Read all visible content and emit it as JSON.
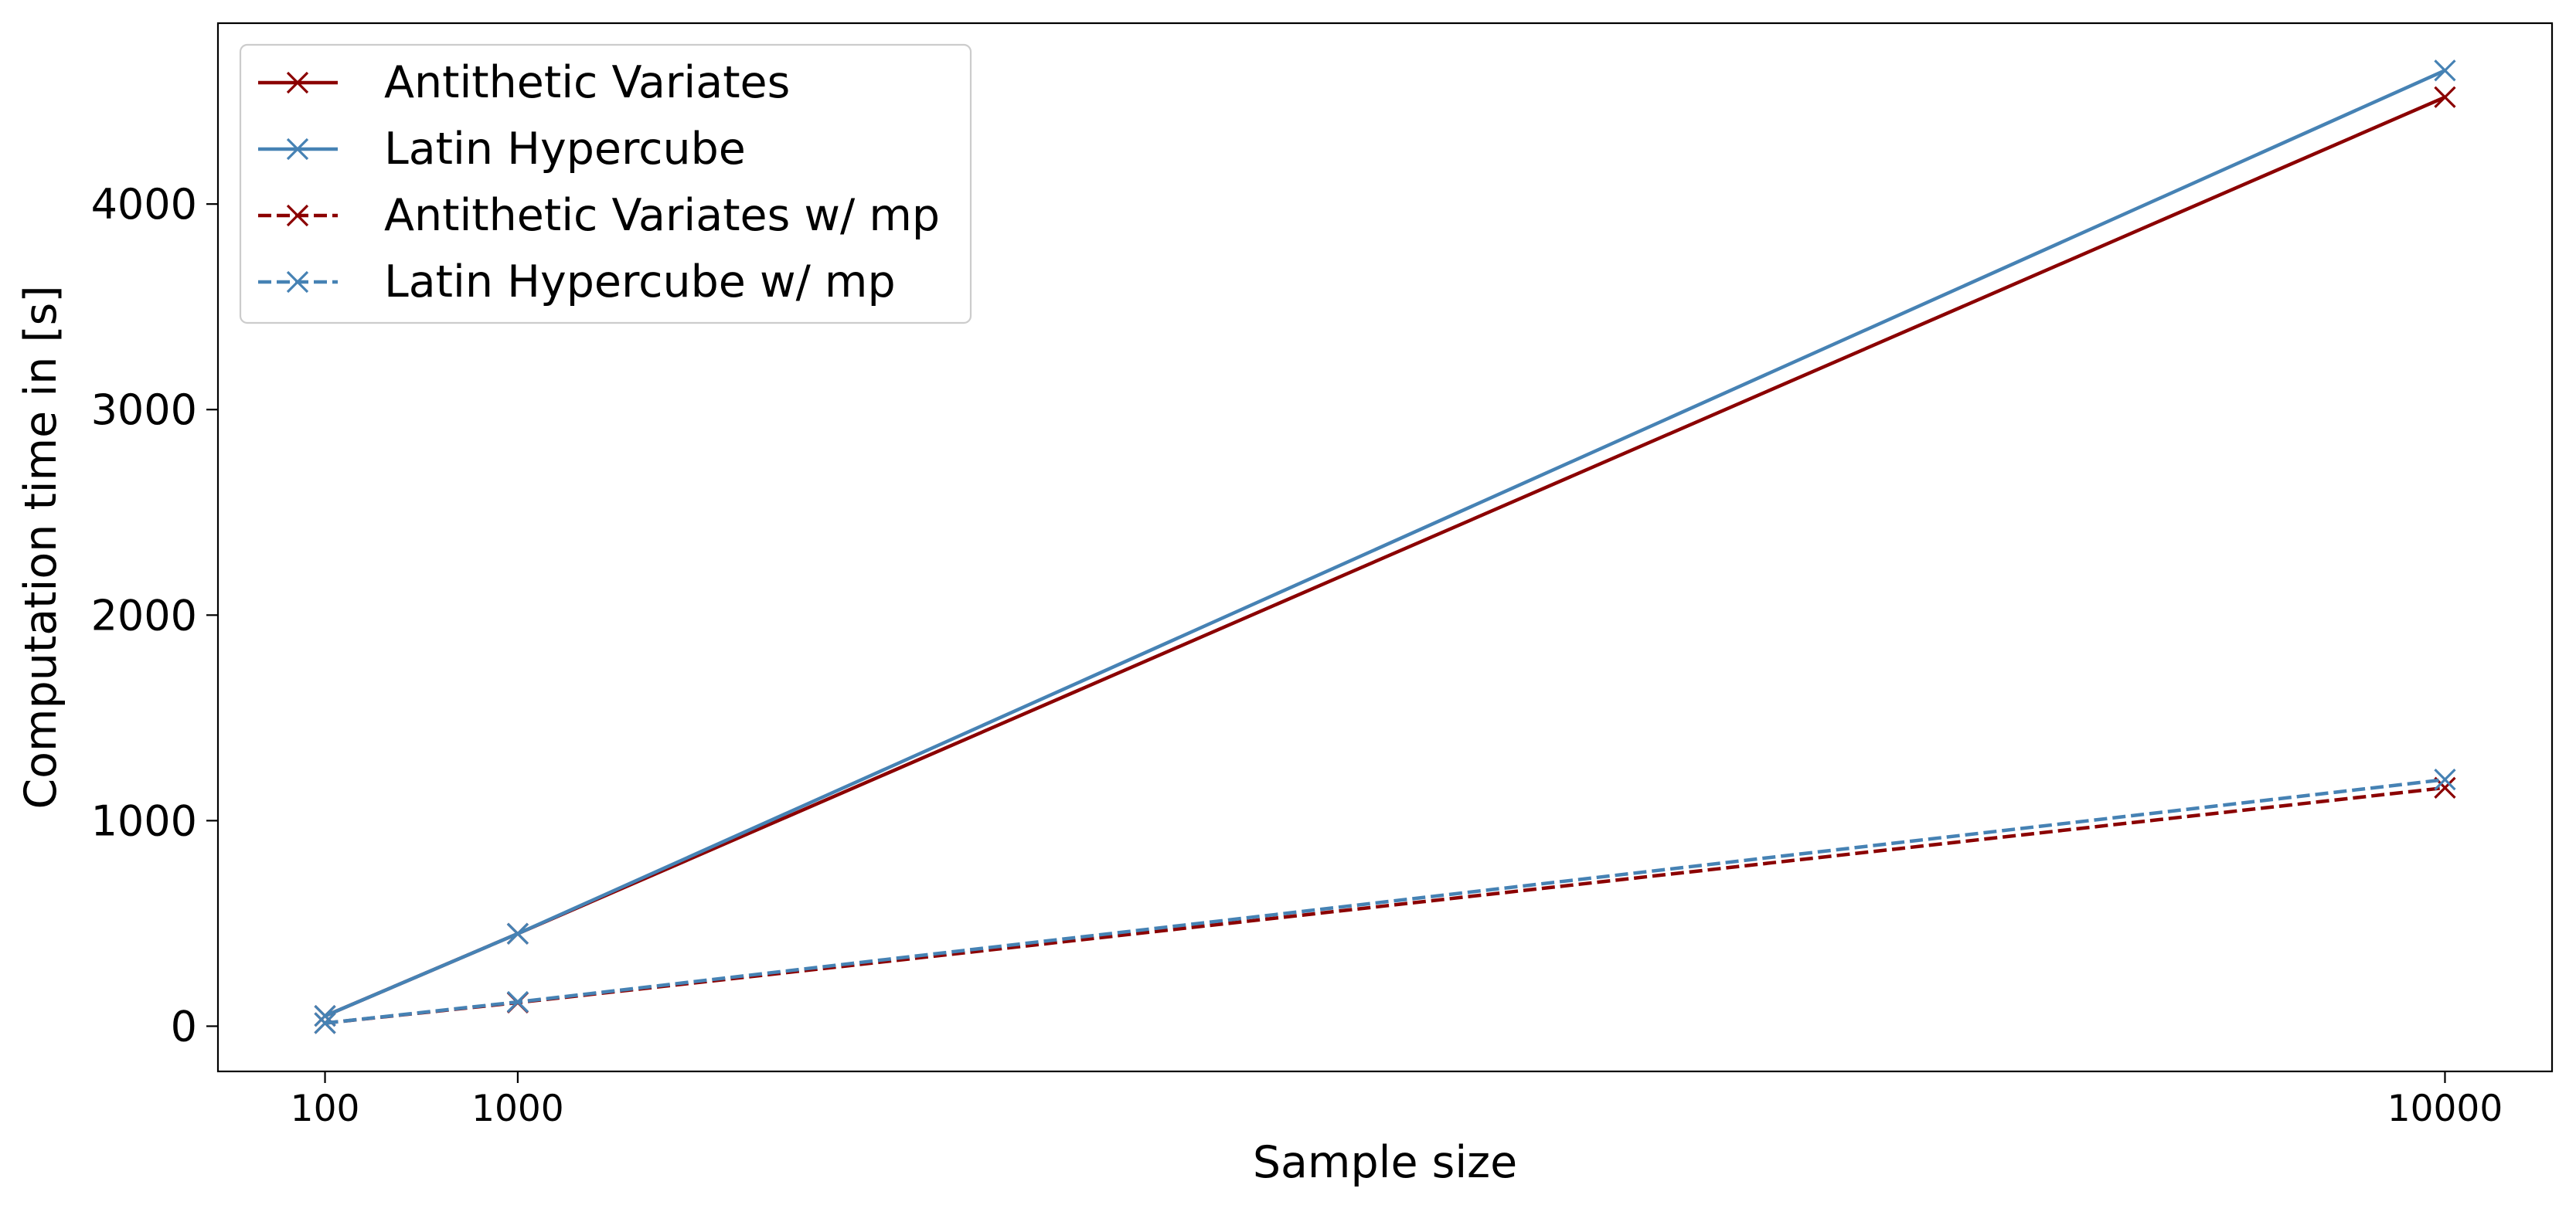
{
  "chart_data": {
    "type": "line",
    "title": "",
    "xlabel": "Sample size",
    "ylabel": "Computation time in [s]",
    "x": [
      100,
      1000,
      10000
    ],
    "xticks": [
      100,
      1000,
      10000
    ],
    "xtick_labels": [
      "100",
      "1000",
      "10000"
    ],
    "xlim": [
      -400,
      10500
    ],
    "yticks": [
      0,
      1000,
      2000,
      3000,
      4000
    ],
    "ytick_labels": [
      "0",
      "1000",
      "2000",
      "3000",
      "4000"
    ],
    "ylim": [
      -220,
      4880
    ],
    "grid": false,
    "legend_position": "top-left",
    "series": [
      {
        "name": "Antithetic Variates",
        "values": [
          50,
          450,
          4520
        ],
        "color": "#8b0000",
        "dash": "solid",
        "marker": "x"
      },
      {
        "name": "Latin Hypercube",
        "values": [
          50,
          450,
          4650
        ],
        "color": "#4682b4",
        "dash": "solid",
        "marker": "x"
      },
      {
        "name": "Antithetic Variates w/ mp",
        "values": [
          15,
          115,
          1160
        ],
        "color": "#8b0000",
        "dash": "dashed",
        "marker": "x"
      },
      {
        "name": "Latin Hypercube w/ mp",
        "values": [
          15,
          118,
          1200
        ],
        "color": "#4682b4",
        "dash": "dashed",
        "marker": "x"
      }
    ]
  }
}
